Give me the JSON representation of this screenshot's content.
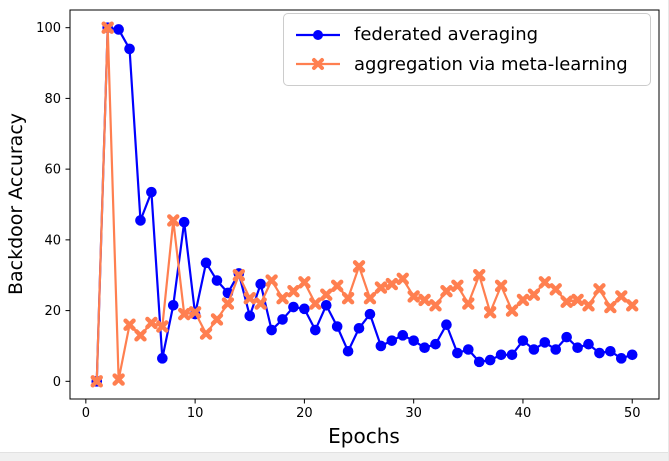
{
  "figure": {
    "background": "#ffffff",
    "bottom_strip_color": "#f0f0f0",
    "axis_color": "#000000"
  },
  "chart_data": {
    "type": "line",
    "title": "",
    "xlabel": "Epochs",
    "ylabel": "Backdoor Accuracy",
    "xlim": [
      -1.45,
      52.45
    ],
    "ylim": [
      -5,
      105
    ],
    "xticks": [
      0,
      10,
      20,
      30,
      40,
      50
    ],
    "yticks": [
      0,
      20,
      40,
      60,
      80,
      100
    ],
    "grid": false,
    "legend_position": "upper right",
    "x": [
      1,
      2,
      3,
      4,
      5,
      6,
      7,
      8,
      9,
      10,
      11,
      12,
      13,
      14,
      15,
      16,
      17,
      18,
      19,
      20,
      21,
      22,
      23,
      24,
      25,
      26,
      27,
      28,
      29,
      30,
      31,
      32,
      33,
      34,
      35,
      36,
      37,
      38,
      39,
      40,
      41,
      42,
      43,
      44,
      45,
      46,
      47,
      48,
      49,
      50
    ],
    "series": [
      {
        "name": "federated averaging",
        "color": "#0000ff",
        "marker": "circle",
        "values": [
          0,
          100,
          99.5,
          94,
          45.5,
          53.5,
          6.5,
          21.5,
          45,
          19,
          33.5,
          28.5,
          25,
          30.5,
          18.5,
          27.5,
          14.5,
          17.5,
          21,
          20.5,
          14.5,
          21.5,
          15.5,
          8.5,
          15,
          19,
          10,
          11.5,
          13,
          11.5,
          9.5,
          10.5,
          16,
          8,
          9,
          5.5,
          6,
          7.5,
          7.5,
          11.5,
          9,
          11,
          9,
          12.5,
          9.5,
          10.5,
          8,
          8.5,
          6.5,
          7.5
        ]
      },
      {
        "name": "aggregation via meta-learning",
        "color": "#ff7f50",
        "marker": "X",
        "values": [
          0,
          100,
          0.5,
          16,
          13,
          16.5,
          15.5,
          45.5,
          19,
          19.5,
          13.5,
          17.5,
          22,
          30,
          23.5,
          22,
          28.5,
          23.5,
          25.5,
          28,
          22,
          24.5,
          27,
          23.5,
          32.5,
          23.5,
          26.5,
          27.5,
          29,
          24,
          23,
          21.5,
          25.5,
          27,
          22,
          30,
          19.5,
          27,
          20,
          23,
          24.5,
          28,
          26,
          22.5,
          23,
          21.5,
          26,
          21,
          24,
          21.5
        ]
      }
    ]
  }
}
